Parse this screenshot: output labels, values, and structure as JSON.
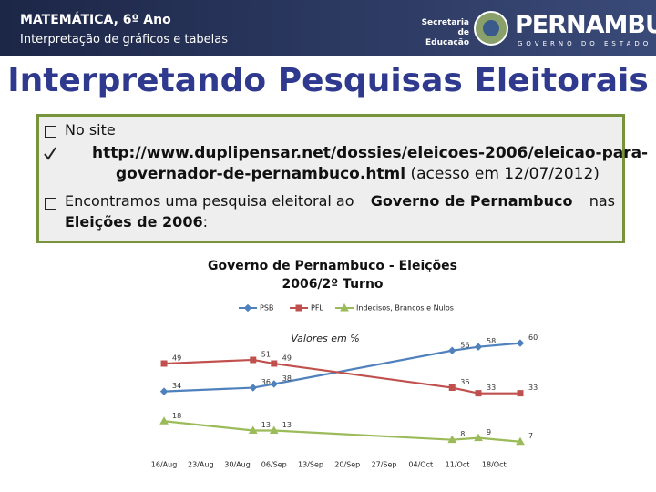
{
  "header": {
    "course": "MATEMÁTICA, 6º Ano",
    "subtitle": "Interpretação de gráficos e tabelas",
    "logo": {
      "department": [
        "Secretaria de",
        "Educação"
      ],
      "state": "PERNAMBUCO",
      "government": "GOVERNO DO ESTADO"
    }
  },
  "title": "Interpretando Pesquisas Eleitorais",
  "content": {
    "bullet1": "No site",
    "link": [
      "http://www.duplipensar.net/dossies/eleicoes-2006/eleicao-para-",
      "governador-de-pernambuco.html"
    ],
    "access": "(acesso em 12/07/2012)",
    "bullet2": [
      "Encontramos uma pesquisa eleitoral ao",
      "Governo de Pernambuco",
      "nas",
      "Eleições de 2006",
      ":"
    ]
  },
  "chart_data": {
    "type": "line",
    "title": "Governo de Pernambuco - Eleições 2006/2º Turno",
    "subtitle": "Valores em %",
    "x": [
      0,
      17,
      21,
      55,
      60,
      68
    ],
    "xlim": [
      -1,
      70
    ],
    "xticks": [
      {
        "value": 0,
        "label": "16/Aug"
      },
      {
        "value": 7,
        "label": "23/Aug"
      },
      {
        "value": 14,
        "label": "30/Aug"
      },
      {
        "value": 21,
        "label": "06/Sep"
      },
      {
        "value": 28,
        "label": "13/Sep"
      },
      {
        "value": 35,
        "label": "20/Sep"
      },
      {
        "value": 42,
        "label": "27/Sep"
      },
      {
        "value": 49,
        "label": "04/Oct"
      },
      {
        "value": 56,
        "label": "11/Oct"
      },
      {
        "value": 63,
        "label": "18/Oct"
      }
    ],
    "ylim": [
      0,
      65
    ],
    "series": [
      {
        "name": "PSB",
        "color": "#4f81bd",
        "marker": "diamond",
        "values": [
          34,
          36,
          38,
          56,
          58,
          60
        ]
      },
      {
        "name": "PFL",
        "color": "#c0504d",
        "marker": "square",
        "values": [
          49,
          51,
          49,
          36,
          33,
          33
        ]
      },
      {
        "name": "Indecisos, Brancos e Nulos",
        "color": "#9bbb59",
        "marker": "triangle",
        "values": [
          18,
          13,
          13,
          8,
          9,
          7
        ]
      }
    ]
  }
}
